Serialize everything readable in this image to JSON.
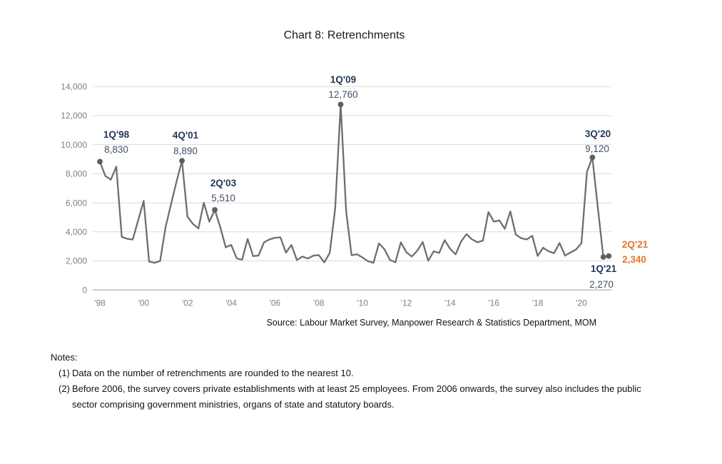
{
  "title": "Chart 8: Retrenchments",
  "source": "Source: Labour Market Survey, Manpower Research & Statistics Department, MOM",
  "notes": {
    "heading": "Notes:",
    "items": [
      {
        "num": "(1)",
        "text": "Data on the number of retrenchments are rounded to the nearest 10."
      },
      {
        "num": "(2)",
        "text": "Before 2006, the survey covers private establishments with at least 25 employees. From 2006 onwards, the survey also includes the public sector comprising government ministries, organs of state and statutory boards."
      }
    ]
  },
  "colors": {
    "line": "#6e6e6e",
    "marker": "#5e5e5e",
    "grid": "#d9d9d9",
    "axis_line": "#a8a8a8",
    "axis_text": "#7f7f7f",
    "annotation_label": "#24395b",
    "annotation_value": "#41506b",
    "highlight_orange": "#e0752c"
  },
  "chart_data": {
    "type": "line",
    "title": "Chart 8: Retrenchments",
    "x_range_quarters": [
      "1Q'98",
      "2Q'21"
    ],
    "frequency": "quarterly",
    "ylim": [
      0,
      14000
    ],
    "ytick_step": 2000,
    "grid": "horizontal",
    "legend": "none",
    "y_ticks": [
      {
        "value": 0,
        "label": "0"
      },
      {
        "value": 2000,
        "label": "2,000"
      },
      {
        "value": 4000,
        "label": "4,000"
      },
      {
        "value": 6000,
        "label": "6,000"
      },
      {
        "value": 8000,
        "label": "8,000"
      },
      {
        "value": 10000,
        "label": "10,000"
      },
      {
        "value": 12000,
        "label": "12,000"
      },
      {
        "value": 14000,
        "label": "14,000"
      }
    ],
    "x_ticks": [
      {
        "q": 0,
        "label": "'98"
      },
      {
        "q": 8,
        "label": "'00"
      },
      {
        "q": 16,
        "label": "'02"
      },
      {
        "q": 24,
        "label": "'04"
      },
      {
        "q": 32,
        "label": "'06"
      },
      {
        "q": 40,
        "label": "'08"
      },
      {
        "q": 48,
        "label": "'10"
      },
      {
        "q": 56,
        "label": "'12"
      },
      {
        "q": 64,
        "label": "'14"
      },
      {
        "q": 72,
        "label": "'16"
      },
      {
        "q": 80,
        "label": "'18"
      },
      {
        "q": 88,
        "label": "'20"
      }
    ],
    "series": [
      {
        "name": "Retrenchments",
        "start": "1Q 1998",
        "values": [
          8830,
          7840,
          7590,
          8490,
          3650,
          3520,
          3470,
          4800,
          6130,
          1950,
          1870,
          1990,
          4310,
          5900,
          7450,
          8890,
          5050,
          4550,
          4230,
          6000,
          4700,
          5510,
          4330,
          2940,
          3100,
          2170,
          2090,
          3510,
          2330,
          2370,
          3280,
          3480,
          3590,
          3620,
          2570,
          3100,
          2060,
          2300,
          2160,
          2360,
          2400,
          1900,
          2550,
          5600,
          12760,
          5400,
          2390,
          2450,
          2230,
          1980,
          1870,
          3200,
          2800,
          2070,
          1900,
          3280,
          2600,
          2300,
          2700,
          3300,
          2010,
          2660,
          2550,
          3430,
          2830,
          2450,
          3320,
          3840,
          3480,
          3280,
          3400,
          5360,
          4700,
          4790,
          4210,
          5410,
          3810,
          3560,
          3480,
          3730,
          2340,
          2910,
          2660,
          2530,
          3230,
          2370,
          2580,
          2780,
          3220,
          8130,
          9120,
          5640,
          2270,
          2340
        ]
      }
    ],
    "annotations": [
      {
        "label": "1Q'98",
        "value": "8,830",
        "q": 0,
        "highlight": false
      },
      {
        "label": "4Q'01",
        "value": "8,890",
        "q": 15,
        "highlight": false
      },
      {
        "label": "2Q'03",
        "value": "5,510",
        "q": 21,
        "highlight": false
      },
      {
        "label": "1Q'09",
        "value": "12,760",
        "q": 44,
        "highlight": false
      },
      {
        "label": "3Q'20",
        "value": "9,120",
        "q": 90,
        "highlight": false
      },
      {
        "label": "1Q'21",
        "value": "2,270",
        "q": 92,
        "highlight": false
      },
      {
        "label": "2Q'21",
        "value": "2,340",
        "q": 93,
        "highlight": true
      }
    ]
  }
}
